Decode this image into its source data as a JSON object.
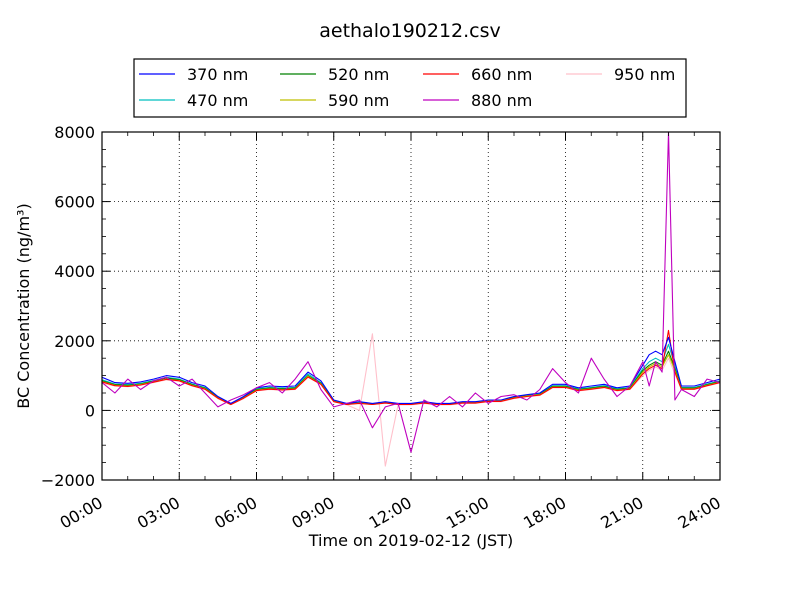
{
  "chart_data": {
    "type": "line",
    "title": "aethalo190212.csv",
    "xlabel": "Time on 2019-02-12 (JST)",
    "ylabel": "BC Concentration (ng/m³)",
    "xlim": [
      0,
      24
    ],
    "ylim": [
      -2000,
      8000
    ],
    "grid": true,
    "legend_position": "top-center",
    "x_ticks": [
      {
        "value": 0,
        "label": "00:00"
      },
      {
        "value": 3,
        "label": "03:00"
      },
      {
        "value": 6,
        "label": "06:00"
      },
      {
        "value": 9,
        "label": "09:00"
      },
      {
        "value": 12,
        "label": "12:00"
      },
      {
        "value": 15,
        "label": "15:00"
      },
      {
        "value": 18,
        "label": "18:00"
      },
      {
        "value": 21,
        "label": "21:00"
      },
      {
        "value": 24,
        "label": "24:00"
      }
    ],
    "y_ticks": [
      {
        "value": -2000,
        "label": "−2000"
      },
      {
        "value": 0,
        "label": "0"
      },
      {
        "value": 2000,
        "label": "2000"
      },
      {
        "value": 4000,
        "label": "4000"
      },
      {
        "value": 6000,
        "label": "6000"
      },
      {
        "value": 8000,
        "label": "8000"
      }
    ],
    "x": [
      0,
      0.5,
      1,
      1.5,
      2,
      2.5,
      3,
      3.5,
      4,
      4.5,
      5,
      5.5,
      6,
      6.5,
      7,
      7.5,
      8,
      8.5,
      9,
      9.5,
      10,
      10.5,
      11,
      11.5,
      12,
      12.5,
      13,
      13.5,
      14,
      14.5,
      15,
      15.5,
      16,
      16.5,
      17,
      17.5,
      18,
      18.5,
      19,
      19.5,
      20,
      20.5,
      21,
      21.25,
      21.5,
      21.75,
      22,
      22.25,
      22.5,
      23,
      23.5,
      24
    ],
    "series": [
      {
        "name": "370 nm",
        "color": "#0000ff",
        "values": [
          950,
          800,
          780,
          820,
          900,
          1000,
          950,
          800,
          700,
          400,
          200,
          400,
          650,
          700,
          680,
          700,
          1100,
          850,
          300,
          200,
          250,
          200,
          250,
          200,
          200,
          250,
          200,
          200,
          250,
          250,
          300,
          300,
          400,
          450,
          500,
          750,
          750,
          650,
          700,
          750,
          650,
          700,
          1300,
          1600,
          1700,
          1600,
          2100,
          1400,
          700,
          700,
          800,
          900
        ]
      },
      {
        "name": "470 nm",
        "color": "#00bfbf",
        "values": [
          880,
          760,
          740,
          780,
          860,
          950,
          900,
          760,
          660,
          380,
          190,
          380,
          620,
          660,
          640,
          660,
          1050,
          800,
          280,
          190,
          230,
          190,
          240,
          190,
          190,
          240,
          190,
          190,
          240,
          240,
          290,
          290,
          380,
          430,
          480,
          710,
          710,
          620,
          660,
          710,
          620,
          660,
          1200,
          1400,
          1500,
          1400,
          1900,
          1300,
          660,
          660,
          760,
          850
        ]
      },
      {
        "name": "520 nm",
        "color": "#008000",
        "values": [
          850,
          740,
          720,
          760,
          840,
          930,
          880,
          740,
          640,
          370,
          180,
          370,
          600,
          640,
          620,
          640,
          1000,
          780,
          270,
          180,
          220,
          180,
          230,
          180,
          180,
          230,
          180,
          180,
          230,
          230,
          280,
          280,
          370,
          420,
          460,
          690,
          690,
          600,
          640,
          690,
          600,
          640,
          1150,
          1300,
          1400,
          1300,
          1700,
          1200,
          640,
          640,
          740,
          830
        ]
      },
      {
        "name": "590 nm",
        "color": "#bfbf00",
        "values": [
          830,
          720,
          700,
          740,
          820,
          900,
          860,
          720,
          620,
          360,
          170,
          360,
          580,
          620,
          600,
          620,
          980,
          760,
          260,
          170,
          210,
          170,
          220,
          170,
          170,
          220,
          170,
          170,
          220,
          220,
          270,
          270,
          360,
          410,
          450,
          670,
          670,
          580,
          620,
          670,
          580,
          620,
          1100,
          1250,
          1350,
          1250,
          1600,
          1150,
          620,
          620,
          720,
          810
        ]
      },
      {
        "name": "660 nm",
        "color": "#ff0000",
        "values": [
          820,
          710,
          690,
          730,
          810,
          890,
          850,
          710,
          610,
          350,
          170,
          350,
          570,
          610,
          590,
          610,
          960,
          750,
          250,
          170,
          200,
          170,
          210,
          170,
          170,
          210,
          170,
          170,
          210,
          210,
          260,
          260,
          350,
          400,
          440,
          660,
          660,
          570,
          610,
          660,
          570,
          610,
          1050,
          1200,
          1300,
          1200,
          2300,
          1100,
          610,
          610,
          710,
          800
        ]
      },
      {
        "name": "880 nm",
        "color": "#bf00bf",
        "values": [
          800,
          500,
          900,
          600,
          850,
          950,
          700,
          900,
          500,
          100,
          300,
          450,
          650,
          800,
          500,
          900,
          1400,
          600,
          100,
          200,
          300,
          -500,
          100,
          200,
          -1200,
          300,
          100,
          400,
          100,
          500,
          200,
          400,
          450,
          300,
          600,
          1200,
          800,
          500,
          1500,
          900,
          400,
          700,
          1400,
          700,
          1400,
          1100,
          8000,
          300,
          600,
          400,
          900,
          800
        ]
      },
      {
        "name": "950 nm",
        "color": "#ffc0cb",
        "values": [
          780,
          700,
          680,
          720,
          800,
          880,
          840,
          700,
          600,
          340,
          160,
          340,
          560,
          600,
          580,
          600,
          950,
          740,
          250,
          160,
          0,
          2200,
          -1600,
          160,
          160,
          200,
          160,
          160,
          200,
          200,
          250,
          250,
          340,
          390,
          430,
          650,
          650,
          560,
          600,
          650,
          560,
          600,
          1000,
          1150,
          1250,
          1150,
          1500,
          1050,
          600,
          600,
          700,
          790
        ]
      }
    ]
  }
}
